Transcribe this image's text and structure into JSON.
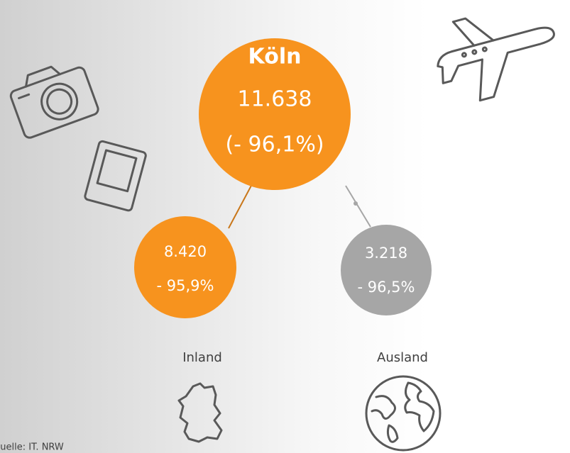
{
  "center": {
    "title": "Köln",
    "value": "11.638",
    "change": "(- 96,1%)"
  },
  "nodes": [
    {
      "value": "8.420",
      "change": "- 95,9%",
      "label": "Inland"
    },
    {
      "value": "3.218",
      "change": "- 96,5%",
      "label": "Ausland"
    }
  ],
  "source": "Quelle: IT. NRW"
}
